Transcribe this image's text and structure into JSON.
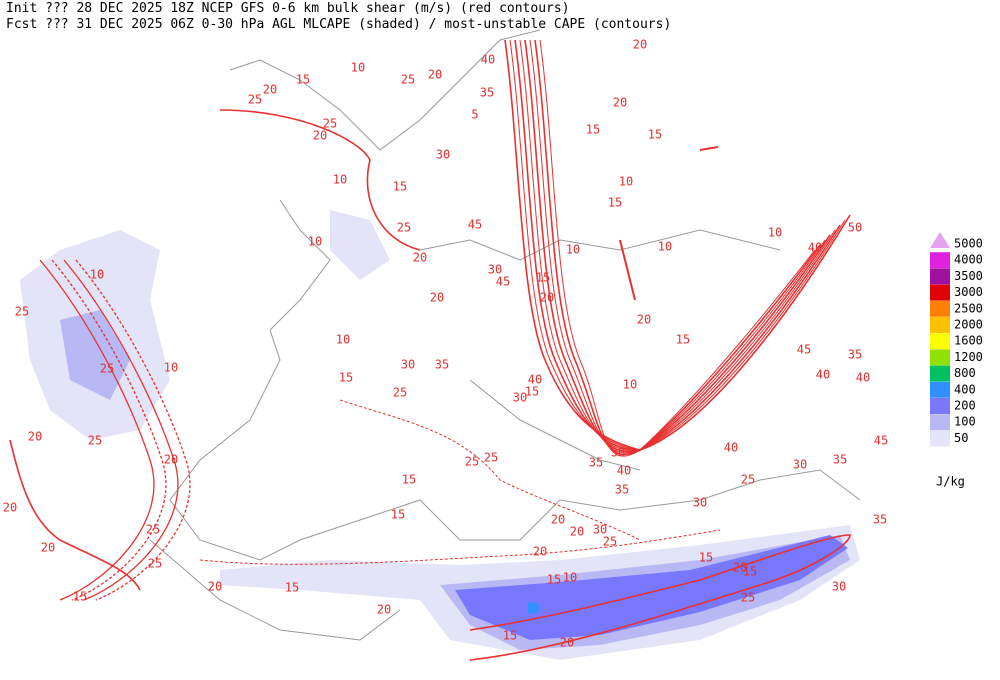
{
  "header": {
    "line1": "Init  ??? 28 DEC 2025 18Z  NCEP GFS 0-6 km bulk shear (m/s) (red contours)",
    "line2": "Fcst ??? 31 DEC 2025 06Z  0-30 hPa AGL MLCAPE (shaded) / most-unstable CAPE (contours)"
  },
  "legend": {
    "levels": [
      {
        "label": "5000",
        "color": "#e8a0f0"
      },
      {
        "label": "4000",
        "color": "#e020e0"
      },
      {
        "label": "3500",
        "color": "#a010a0"
      },
      {
        "label": "3000",
        "color": "#e00000"
      },
      {
        "label": "2500",
        "color": "#ff8000"
      },
      {
        "label": "2000",
        "color": "#ffc000"
      },
      {
        "label": "1600",
        "color": "#ffff00"
      },
      {
        "label": "1200",
        "color": "#90e000"
      },
      {
        "label": "800",
        "color": "#00c060"
      },
      {
        "label": "400",
        "color": "#3090ff"
      },
      {
        "label": "200",
        "color": "#7878ff"
      },
      {
        "label": "100",
        "color": "#b8b8f4"
      },
      {
        "label": "50",
        "color": "#e4e4f8"
      }
    ],
    "unit": "J/kg"
  },
  "contour_labels": [
    "20",
    "40",
    "10",
    "15",
    "25",
    "20",
    "20",
    "25",
    "35",
    "20",
    "25",
    "20",
    "15",
    "15",
    "5",
    "30",
    "10",
    "10",
    "15",
    "45",
    "25",
    "15",
    "10",
    "50",
    "10",
    "10",
    "10",
    "40",
    "20",
    "10",
    "30",
    "45",
    "15",
    "20",
    "25",
    "20",
    "20",
    "15",
    "25",
    "10",
    "30",
    "35",
    "10",
    "15",
    "40",
    "15",
    "30",
    "10",
    "45",
    "35",
    "40",
    "40",
    "25",
    "20",
    "25",
    "20",
    "40",
    "35",
    "45",
    "30",
    "30",
    "35",
    "40",
    "25",
    "25",
    "15",
    "35",
    "25",
    "30",
    "15",
    "20",
    "25",
    "20",
    "30",
    "25",
    "20",
    "35",
    "20",
    "20",
    "25",
    "20",
    "15",
    "15",
    "10",
    "15",
    "20",
    "15",
    "30",
    "25",
    "15",
    "20",
    "15",
    "20"
  ]
}
